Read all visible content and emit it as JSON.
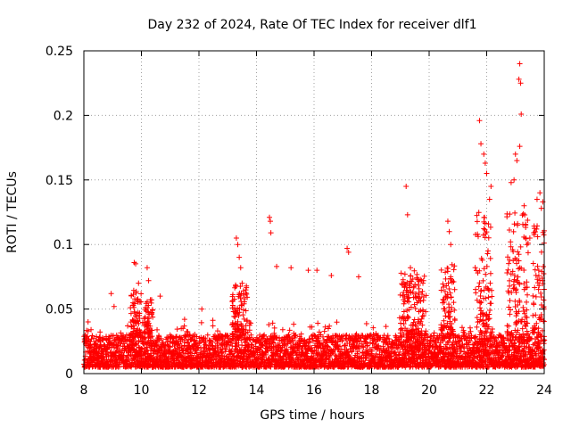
{
  "chart_data": {
    "type": "scatter",
    "title": "Day 232 of 2024, Rate Of TEC Index for receiver dlf1",
    "xlabel": "GPS time / hours",
    "ylabel": "ROTI / TECUs",
    "xlim": [
      8,
      24
    ],
    "ylim": [
      0,
      0.25
    ],
    "grid": true,
    "x_ticks": [
      8,
      10,
      12,
      14,
      16,
      18,
      20,
      22,
      24
    ],
    "x_tick_labels": [
      "8",
      "10",
      "12",
      "14",
      "16",
      "18",
      "20",
      "22",
      "24"
    ],
    "y_ticks": [
      0,
      0.05,
      0.1,
      0.15,
      0.2,
      0.25
    ],
    "y_tick_labels": [
      "0",
      "0.05",
      "0.1",
      "0.15",
      "0.2",
      "0.25"
    ],
    "marker": "+",
    "series_color": "#ff0000",
    "series": [
      {
        "name": "ROTI",
        "description": "Dense scatter of ROTI samples, baseline about 0.005-0.03 TECUs with isolated spikes",
        "points": [
          [
            8.15,
            0.033
          ],
          [
            8.25,
            0.034
          ],
          [
            8.95,
            0.062
          ],
          [
            9.05,
            0.052
          ],
          [
            9.75,
            0.086
          ],
          [
            9.8,
            0.085
          ],
          [
            9.9,
            0.07
          ],
          [
            10.2,
            0.082
          ],
          [
            10.25,
            0.072
          ],
          [
            10.65,
            0.06
          ],
          [
            11.5,
            0.042
          ],
          [
            12.1,
            0.05
          ],
          [
            13.3,
            0.105
          ],
          [
            13.35,
            0.1
          ],
          [
            13.4,
            0.09
          ],
          [
            13.45,
            0.082
          ],
          [
            13.5,
            0.07
          ],
          [
            14.45,
            0.121
          ],
          [
            14.48,
            0.118
          ],
          [
            14.5,
            0.109
          ],
          [
            14.7,
            0.083
          ],
          [
            15.2,
            0.082
          ],
          [
            15.8,
            0.08
          ],
          [
            16.1,
            0.08
          ],
          [
            16.6,
            0.076
          ],
          [
            17.15,
            0.097
          ],
          [
            17.2,
            0.094
          ],
          [
            17.55,
            0.075
          ],
          [
            19.2,
            0.145
          ],
          [
            19.25,
            0.123
          ],
          [
            19.35,
            0.082
          ],
          [
            20.65,
            0.118
          ],
          [
            20.7,
            0.11
          ],
          [
            20.75,
            0.1
          ],
          [
            21.75,
            0.196
          ],
          [
            21.8,
            0.178
          ],
          [
            21.9,
            0.17
          ],
          [
            21.95,
            0.163
          ],
          [
            22.0,
            0.155
          ],
          [
            22.15,
            0.145
          ],
          [
            22.1,
            0.135
          ],
          [
            22.85,
            0.148
          ],
          [
            22.95,
            0.15
          ],
          [
            23.0,
            0.17
          ],
          [
            23.05,
            0.165
          ],
          [
            23.12,
            0.228
          ],
          [
            23.15,
            0.24
          ],
          [
            23.18,
            0.225
          ],
          [
            23.2,
            0.201
          ],
          [
            23.15,
            0.176
          ],
          [
            23.3,
            0.13
          ],
          [
            23.5,
            0.105
          ],
          [
            23.75,
            0.135
          ],
          [
            23.85,
            0.14
          ],
          [
            23.95,
            0.133
          ],
          [
            23.9,
            0.128
          ]
        ],
        "clusters": [
          {
            "x": [
              9.6,
              10.0
            ],
            "ymax": 0.065
          },
          {
            "x": [
              10.1,
              10.4
            ],
            "ymax": 0.06
          },
          {
            "x": [
              13.15,
              13.7
            ],
            "ymax": 0.07
          },
          {
            "x": [
              19.0,
              19.9
            ],
            "ymax": 0.08
          },
          {
            "x": [
              20.4,
              20.9
            ],
            "ymax": 0.085
          },
          {
            "x": [
              21.6,
              22.2
            ],
            "ymax": 0.125
          },
          {
            "x": [
              22.7,
              23.45
            ],
            "ymax": 0.125
          },
          {
            "x": [
              23.6,
              24.0
            ],
            "ymax": 0.115
          }
        ],
        "baseline_range": [
          0.005,
          0.03
        ]
      }
    ]
  }
}
